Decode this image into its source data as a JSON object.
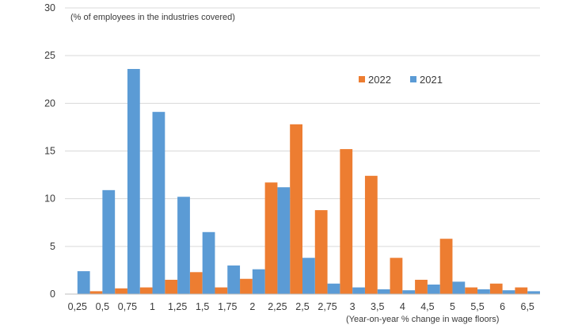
{
  "chart_data": {
    "type": "bar",
    "ylabel_annotation": "(% of employees in the industries covered)",
    "xlabel_annotation": "(Year-on-year % change in wage floors)",
    "categories": [
      "0,25",
      "0,5",
      "0,75",
      "1",
      "1,25",
      "1,5",
      "1,75",
      "2",
      "2,25",
      "2,5",
      "2,75",
      "3",
      "3,5",
      "4",
      "4,5",
      "5",
      "5,5",
      "6",
      "6,5"
    ],
    "ylim": [
      0,
      30
    ],
    "yticks": [
      "0",
      "5",
      "10",
      "15",
      "20",
      "25",
      "30"
    ],
    "ytick_values": [
      0,
      5,
      10,
      15,
      20,
      25,
      30
    ],
    "grid": true,
    "legend_position": "upper-right",
    "series": [
      {
        "name": "2022",
        "color": "#ED7D31",
        "values": [
          0.0,
          0.3,
          0.6,
          0.7,
          1.5,
          2.3,
          0.7,
          1.6,
          11.7,
          17.8,
          8.8,
          15.2,
          12.4,
          3.8,
          1.5,
          5.8,
          0.7,
          1.1,
          0.7
        ]
      },
      {
        "name": "2021",
        "color": "#5B9BD5",
        "values": [
          2.4,
          10.9,
          23.6,
          19.1,
          10.2,
          6.5,
          3.0,
          2.6,
          11.2,
          3.8,
          1.1,
          0.7,
          0.5,
          0.4,
          1.0,
          1.3,
          0.5,
          0.4,
          0.3
        ]
      }
    ]
  }
}
